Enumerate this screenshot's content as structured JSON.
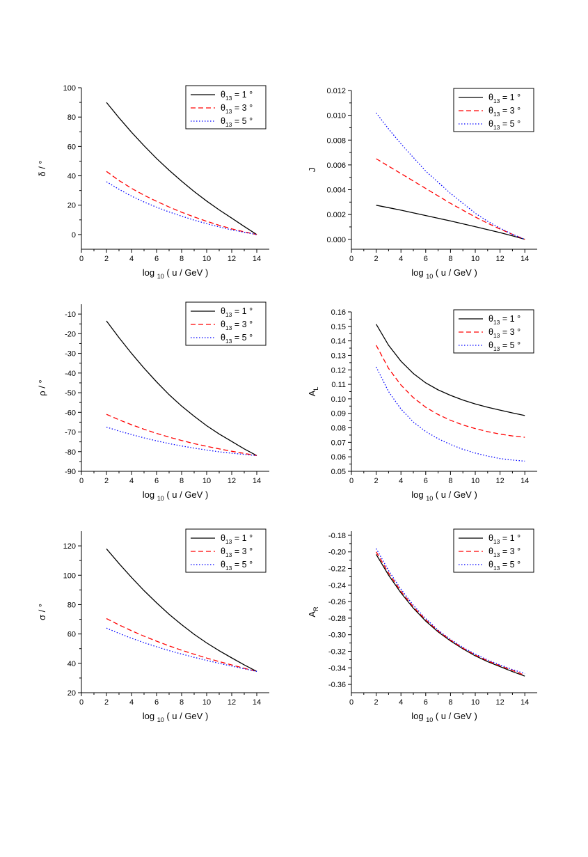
{
  "legend_labels": [
    "θ13 = 1 °",
    "θ13 = 3 °",
    "θ13 = 5 °"
  ],
  "series_colors": [
    "#000000",
    "#ff0000",
    "#0000ff"
  ],
  "series_dash": [
    "solid",
    "dashed",
    "dotted"
  ],
  "chart_data": [
    {
      "type": "line",
      "ylabel": "δ / °",
      "xlabel": "log 10 ( u / GeV )",
      "xlim": [
        0,
        15
      ],
      "ylim": [
        -10,
        100
      ],
      "xticks": [
        "0",
        "2",
        "4",
        "6",
        "8",
        "10",
        "12",
        "14"
      ],
      "yticks": [
        "0",
        "20",
        "40",
        "60",
        "80",
        "100"
      ],
      "legend_position": "top-right",
      "x": [
        2,
        3,
        4,
        5,
        6,
        7,
        8,
        9,
        10,
        11,
        12,
        13,
        14
      ],
      "series": [
        {
          "name": "θ13 = 1 °",
          "values": [
            90,
            79.5,
            69.7,
            60.5,
            51.8,
            43.8,
            36.3,
            29.3,
            22.8,
            16.8,
            11.2,
            5.5,
            0
          ]
        },
        {
          "name": "θ13 = 3 °",
          "values": [
            43,
            36.8,
            31.5,
            26.8,
            22.6,
            18.8,
            15.2,
            12,
            9,
            6.3,
            3.9,
            1.8,
            0
          ]
        },
        {
          "name": "θ13 = 5 °",
          "values": [
            36,
            30.8,
            26.2,
            22.2,
            18.6,
            15.4,
            12.5,
            9.8,
            7.4,
            5.2,
            3.2,
            1.5,
            0
          ]
        }
      ]
    },
    {
      "type": "line",
      "ylabel": "J",
      "xlabel": "log 10 ( u / GeV )",
      "xlim": [
        0,
        15
      ],
      "ylim": [
        -0.0008,
        0.012
      ],
      "xticks": [
        "0",
        "2",
        "4",
        "6",
        "8",
        "10",
        "12",
        "14"
      ],
      "yticks": [
        "0.000",
        "0.002",
        "0.004",
        "0.006",
        "0.008",
        "0.010",
        "0.012"
      ],
      "legend_position": "top-right",
      "x": [
        2,
        3,
        4,
        5,
        6,
        7,
        8,
        9,
        10,
        11,
        12,
        13,
        14
      ],
      "series": [
        {
          "name": "θ13 = 1 °",
          "values": [
            0.00275,
            0.00255,
            0.00235,
            0.00213,
            0.00192,
            0.0017,
            0.00148,
            0.00125,
            0.00102,
            0.00078,
            0.00054,
            0.00028,
            0.0
          ]
        },
        {
          "name": "θ13 = 3 °",
          "values": [
            0.0065,
            0.0059,
            0.0053,
            0.0047,
            0.0041,
            0.0035,
            0.0029,
            0.00235,
            0.0018,
            0.0013,
            0.00083,
            0.0004,
            0.0
          ]
        },
        {
          "name": "θ13 = 5 °",
          "values": [
            0.0102,
            0.0089,
            0.0077,
            0.0066,
            0.0055,
            0.0046,
            0.0037,
            0.0029,
            0.0021,
            0.00145,
            0.0009,
            0.0004,
            0.0
          ]
        }
      ]
    },
    {
      "type": "line",
      "ylabel": "ρ / °",
      "xlabel": "log 10 ( u / GeV )",
      "xlim": [
        0,
        15
      ],
      "ylim": [
        -90,
        -5
      ],
      "xticks": [
        "0",
        "2",
        "4",
        "6",
        "8",
        "10",
        "12",
        "14"
      ],
      "yticks": [
        "-90",
        "-80",
        "-70",
        "-60",
        "-50",
        "-40",
        "-30",
        "-20",
        "-10"
      ],
      "legend_position": "top-right",
      "x": [
        2,
        3,
        4,
        5,
        6,
        7,
        8,
        9,
        10,
        11,
        12,
        13,
        14
      ],
      "series": [
        {
          "name": "θ13 = 1 °",
          "values": [
            -13.5,
            -22,
            -30,
            -37.5,
            -44.5,
            -51,
            -56.8,
            -62,
            -66.8,
            -71,
            -74.8,
            -78.6,
            -82
          ]
        },
        {
          "name": "θ13 = 3 °",
          "values": [
            -61,
            -63.8,
            -66.3,
            -68.6,
            -70.7,
            -72.6,
            -74.3,
            -75.9,
            -77.3,
            -78.6,
            -79.8,
            -80.9,
            -82
          ]
        },
        {
          "name": "θ13 = 5 °",
          "values": [
            -67.5,
            -69.5,
            -71.3,
            -73,
            -74.5,
            -75.9,
            -77.1,
            -78.2,
            -79.2,
            -80.1,
            -80.8,
            -81.4,
            -82
          ]
        }
      ]
    },
    {
      "type": "line",
      "ylabel": "A L",
      "xlabel": "log 10 ( u / GeV )",
      "xlim": [
        0,
        15
      ],
      "ylim": [
        0.05,
        0.16
      ],
      "xticks": [
        "0",
        "2",
        "4",
        "6",
        "8",
        "10",
        "12",
        "14"
      ],
      "yticks": [
        "0.05",
        "0.06",
        "0.07",
        "0.08",
        "0.09",
        "0.10",
        "0.11",
        "0.12",
        "0.13",
        "0.14",
        "0.15",
        "0.16"
      ],
      "legend_position": "top-right",
      "x": [
        2,
        3,
        4,
        5,
        6,
        7,
        8,
        9,
        10,
        11,
        12,
        13,
        14
      ],
      "series": [
        {
          "name": "θ13 = 1 °",
          "values": [
            0.1515,
            0.137,
            0.126,
            0.1175,
            0.111,
            0.1062,
            0.1024,
            0.0992,
            0.0965,
            0.0942,
            0.0922,
            0.0903,
            0.0885
          ]
        },
        {
          "name": "θ13 = 3 °",
          "values": [
            0.137,
            0.121,
            0.1095,
            0.1008,
            0.0942,
            0.0892,
            0.0852,
            0.082,
            0.0795,
            0.0774,
            0.0757,
            0.0744,
            0.0735
          ]
        },
        {
          "name": "θ13 = 5 °",
          "values": [
            0.122,
            0.105,
            0.093,
            0.084,
            0.0775,
            0.0725,
            0.0685,
            0.0652,
            0.0626,
            0.0605,
            0.0588,
            0.0578,
            0.057
          ]
        }
      ]
    },
    {
      "type": "line",
      "ylabel": "σ / °",
      "xlabel": "log 10 ( u / GeV )",
      "xlim": [
        0,
        15
      ],
      "ylim": [
        20,
        130
      ],
      "xticks": [
        "0",
        "2",
        "4",
        "6",
        "8",
        "10",
        "12",
        "14"
      ],
      "yticks": [
        "20",
        "40",
        "60",
        "80",
        "100",
        "120"
      ],
      "legend_position": "top-right",
      "x": [
        2,
        3,
        4,
        5,
        6,
        7,
        8,
        9,
        10,
        11,
        12,
        13,
        14
      ],
      "series": [
        {
          "name": "θ13 = 1 °",
          "values": [
            118,
            108,
            98.5,
            89.5,
            81.2,
            73.4,
            66.3,
            59.8,
            53.9,
            48.6,
            43.7,
            38.9,
            34.5
          ]
        },
        {
          "name": "θ13 = 3 °",
          "values": [
            70.5,
            66.2,
            62.2,
            58.5,
            55.1,
            51.9,
            48.9,
            46.2,
            43.6,
            41.2,
            38.9,
            36.6,
            34.5
          ]
        },
        {
          "name": "θ13 = 5 °",
          "values": [
            64,
            60.4,
            57.1,
            54.1,
            51.3,
            48.7,
            46.3,
            44.1,
            42,
            40,
            38.1,
            36.3,
            34.5
          ]
        }
      ]
    },
    {
      "type": "line",
      "ylabel": "A R",
      "xlabel": "log 10 ( u / GeV )",
      "xlim": [
        0,
        15
      ],
      "ylim": [
        -0.37,
        -0.175
      ],
      "xticks": [
        "0",
        "2",
        "4",
        "6",
        "8",
        "10",
        "12",
        "14"
      ],
      "yticks": [
        "-0.36",
        "-0.34",
        "-0.32",
        "-0.30",
        "-0.28",
        "-0.26",
        "-0.24",
        "-0.22",
        "-0.20",
        "-0.18"
      ],
      "legend_position": "top-right",
      "x": [
        2,
        3,
        4,
        5,
        6,
        7,
        8,
        9,
        10,
        11,
        12,
        13,
        14
      ],
      "series": [
        {
          "name": "θ13 = 1 °",
          "values": [
            -0.203,
            -0.228,
            -0.2495,
            -0.268,
            -0.2835,
            -0.2965,
            -0.3075,
            -0.317,
            -0.3255,
            -0.3325,
            -0.3385,
            -0.3445,
            -0.35
          ]
        },
        {
          "name": "θ13 = 3 °",
          "values": [
            -0.2,
            -0.2255,
            -0.2475,
            -0.2665,
            -0.282,
            -0.2955,
            -0.3065,
            -0.3162,
            -0.3245,
            -0.3315,
            -0.3375,
            -0.343,
            -0.349
          ]
        },
        {
          "name": "θ13 = 5 °",
          "values": [
            -0.196,
            -0.2225,
            -0.245,
            -0.2645,
            -0.2805,
            -0.2945,
            -0.3055,
            -0.3152,
            -0.3235,
            -0.3305,
            -0.3365,
            -0.342,
            -0.347
          ]
        }
      ]
    }
  ]
}
